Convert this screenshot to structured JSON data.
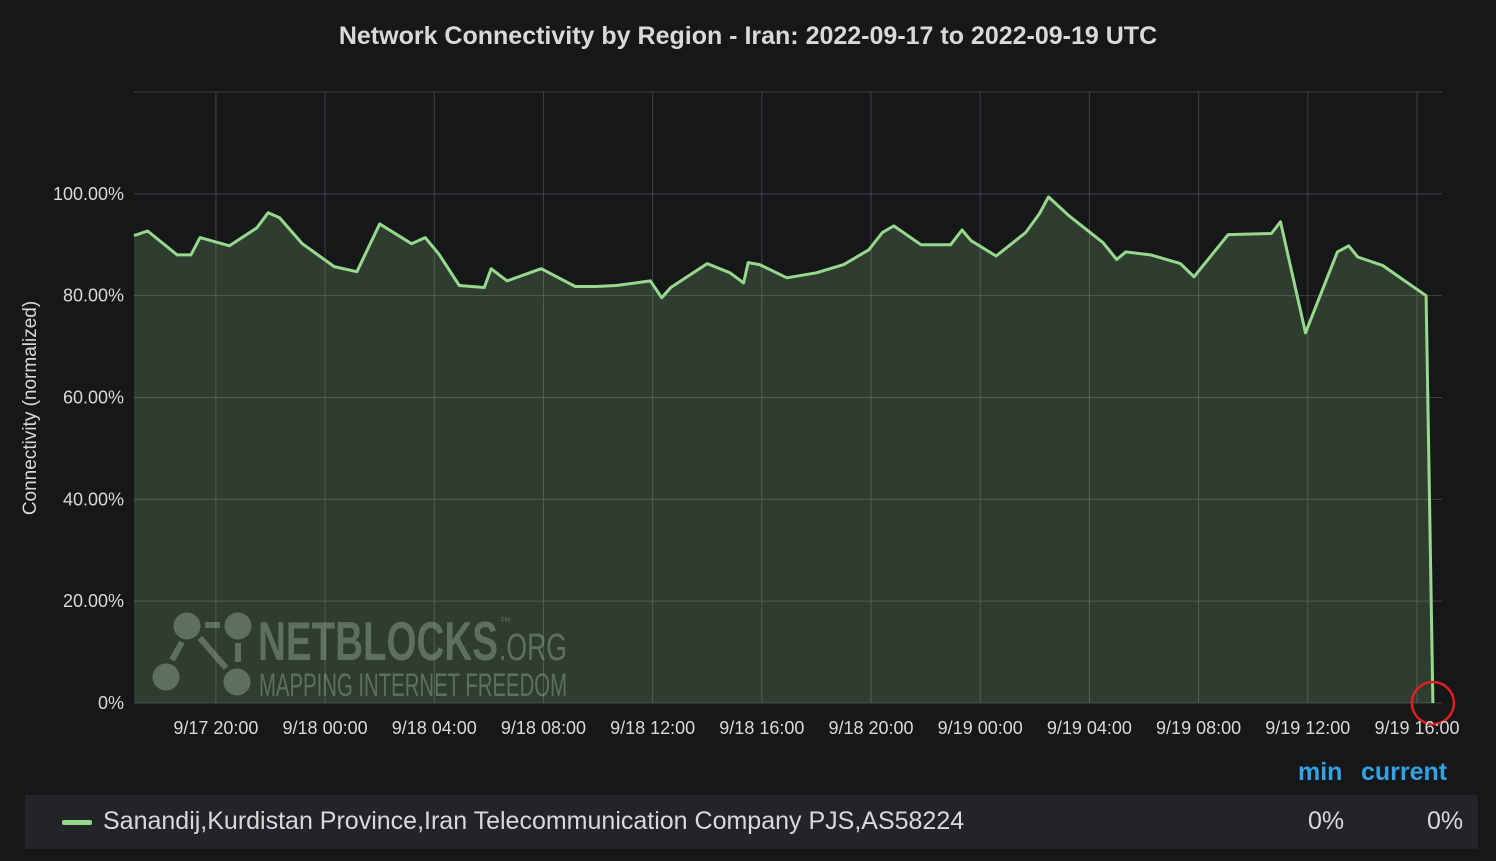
{
  "chart_data": {
    "type": "area",
    "title": "Network Connectivity by Region - Iran: 2022-09-17 to 2022-09-19 UTC",
    "ylabel": "Connectivity (normalized)",
    "xlabel": "",
    "xlim": [
      "2022-09-17T17:00",
      "2022-09-19T16:55"
    ],
    "ylim": [
      0,
      120
    ],
    "grid": true,
    "yticks": [
      {
        "value": 0,
        "label": "0%"
      },
      {
        "value": 20,
        "label": "20.00%"
      },
      {
        "value": 40,
        "label": "40.00%"
      },
      {
        "value": 60,
        "label": "60.00%"
      },
      {
        "value": 80,
        "label": "80.00%"
      },
      {
        "value": 100,
        "label": "100.00%"
      }
    ],
    "xticks": [
      {
        "value": "2022-09-17T20:00",
        "label": "9/17 20:00"
      },
      {
        "value": "2022-09-18T00:00",
        "label": "9/18 00:00"
      },
      {
        "value": "2022-09-18T04:00",
        "label": "9/18 04:00"
      },
      {
        "value": "2022-09-18T08:00",
        "label": "9/18 08:00"
      },
      {
        "value": "2022-09-18T12:00",
        "label": "9/18 12:00"
      },
      {
        "value": "2022-09-18T16:00",
        "label": "9/18 16:00"
      },
      {
        "value": "2022-09-18T20:00",
        "label": "9/18 20:00"
      },
      {
        "value": "2022-09-19T00:00",
        "label": "9/19 00:00"
      },
      {
        "value": "2022-09-19T04:00",
        "label": "9/19 04:00"
      },
      {
        "value": "2022-09-19T08:00",
        "label": "9/19 08:00"
      },
      {
        "value": "2022-09-19T12:00",
        "label": "9/19 12:00"
      },
      {
        "value": "2022-09-19T16:00",
        "label": "9/19 16:00"
      }
    ],
    "series": [
      {
        "name": "Sanandij,Kurdistan Province,Iran Telecommunication Company PJS,AS58224",
        "color": "#96d98d",
        "min": "0%",
        "current": "0%",
        "points": [
          [
            "2022-09-17T17:00",
            91.8
          ],
          [
            "2022-09-17T17:30",
            92.7
          ],
          [
            "2022-09-17T18:35",
            88.0
          ],
          [
            "2022-09-17T19:05",
            88.0
          ],
          [
            "2022-09-17T19:25",
            91.4
          ],
          [
            "2022-09-17T20:30",
            89.8
          ],
          [
            "2022-09-17T21:30",
            93.3
          ],
          [
            "2022-09-17T21:55",
            96.3
          ],
          [
            "2022-09-17T22:20",
            95.3
          ],
          [
            "2022-09-17T23:10",
            90.2
          ],
          [
            "2022-09-18T00:20",
            85.7
          ],
          [
            "2022-09-18T01:10",
            84.7
          ],
          [
            "2022-09-18T02:00",
            94.1
          ],
          [
            "2022-09-18T03:10",
            90.2
          ],
          [
            "2022-09-18T03:40",
            91.4
          ],
          [
            "2022-09-18T04:10",
            88.2
          ],
          [
            "2022-09-18T04:55",
            82.0
          ],
          [
            "2022-09-18T05:50",
            81.6
          ],
          [
            "2022-09-18T06:05",
            85.3
          ],
          [
            "2022-09-18T06:40",
            82.9
          ],
          [
            "2022-09-18T07:55",
            85.3
          ],
          [
            "2022-09-18T09:10",
            81.8
          ],
          [
            "2022-09-18T09:55",
            81.8
          ],
          [
            "2022-09-18T10:40",
            82.0
          ],
          [
            "2022-09-18T11:55",
            82.9
          ],
          [
            "2022-09-18T12:20",
            79.6
          ],
          [
            "2022-09-18T12:40",
            81.6
          ],
          [
            "2022-09-18T14:00",
            86.3
          ],
          [
            "2022-09-18T14:50",
            84.5
          ],
          [
            "2022-09-18T15:20",
            82.5
          ],
          [
            "2022-09-18T15:30",
            86.5
          ],
          [
            "2022-09-18T15:55",
            86.1
          ],
          [
            "2022-09-18T16:55",
            83.5
          ],
          [
            "2022-09-18T18:00",
            84.5
          ],
          [
            "2022-09-18T19:00",
            86.1
          ],
          [
            "2022-09-18T19:55",
            89.0
          ],
          [
            "2022-09-18T20:25",
            92.4
          ],
          [
            "2022-09-18T20:50",
            93.7
          ],
          [
            "2022-09-18T21:50",
            90.0
          ],
          [
            "2022-09-18T22:55",
            90.0
          ],
          [
            "2022-09-18T23:20",
            92.9
          ],
          [
            "2022-09-18T23:40",
            90.8
          ],
          [
            "2022-09-19T00:35",
            87.8
          ],
          [
            "2022-09-19T01:40",
            92.4
          ],
          [
            "2022-09-19T02:10",
            96.1
          ],
          [
            "2022-09-19T02:30",
            99.4
          ],
          [
            "2022-09-19T03:15",
            95.7
          ],
          [
            "2022-09-19T04:30",
            90.4
          ],
          [
            "2022-09-19T05:00",
            87.1
          ],
          [
            "2022-09-19T05:20",
            88.6
          ],
          [
            "2022-09-19T06:15",
            88.0
          ],
          [
            "2022-09-19T07:20",
            86.3
          ],
          [
            "2022-09-19T07:50",
            83.7
          ],
          [
            "2022-09-19T09:05",
            92.0
          ],
          [
            "2022-09-19T10:40",
            92.2
          ],
          [
            "2022-09-19T11:00",
            94.5
          ],
          [
            "2022-09-19T11:55",
            72.7
          ],
          [
            "2022-09-19T13:05",
            88.6
          ],
          [
            "2022-09-19T13:30",
            89.8
          ],
          [
            "2022-09-19T13:50",
            87.6
          ],
          [
            "2022-09-19T14:45",
            85.9
          ],
          [
            "2022-09-19T16:20",
            80.0
          ],
          [
            "2022-09-19T16:35",
            0
          ]
        ]
      }
    ],
    "annotation": {
      "type": "red-circle",
      "at": [
        "2022-09-19T16:35",
        0
      ],
      "color": "#e02020"
    },
    "legend_placement": "bottom"
  },
  "legend": {
    "min_label": "min",
    "current_label": "current"
  },
  "watermark": {
    "brand": "NETBLOCKS",
    "tm": "™",
    "suffix": ".ORG",
    "tagline": "MAPPING INTERNET FREEDOM"
  },
  "colors": {
    "background": "#161719",
    "grid": "#3f4144",
    "line": "#96d98d",
    "accent": "#33a2e5"
  }
}
